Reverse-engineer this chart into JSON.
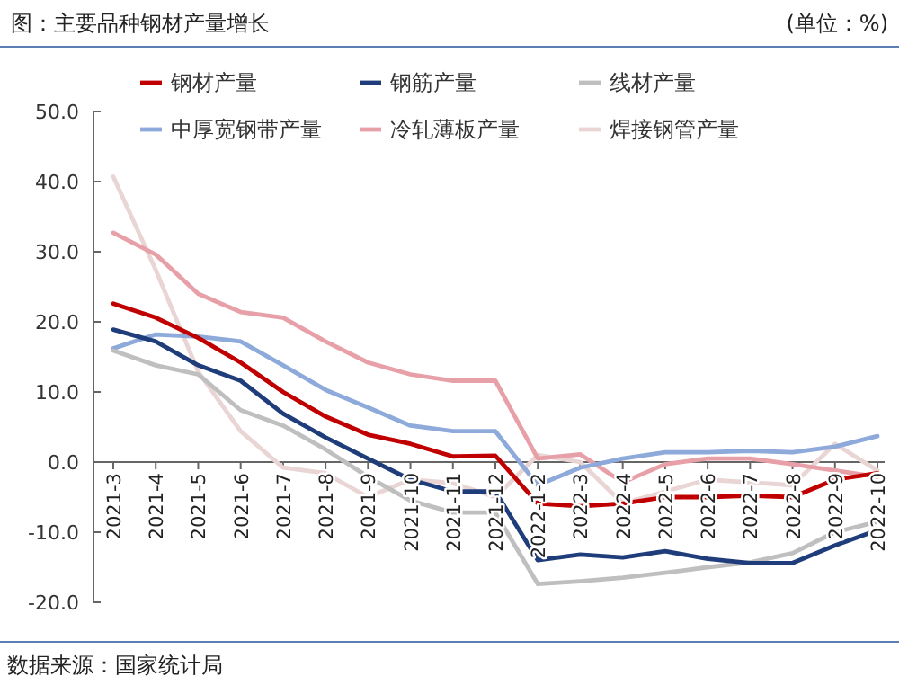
{
  "chart_data": {
    "type": "line",
    "title": "图：主要品种钢材产量增长",
    "ylabel": "(单位：%)",
    "annotations": [
      "数据来源：国家统计局"
    ],
    "categories": [
      "2021-3",
      "2021-4",
      "2021-5",
      "2021-6",
      "2021-7",
      "2021-8",
      "2021-9",
      "2021-10",
      "2021-11",
      "2021-12",
      "2022-1-2",
      "2022-3",
      "2022-4",
      "2022-5",
      "2022-6",
      "2022-7",
      "2022-8",
      "2022-9",
      "2022-10"
    ],
    "ylim": [
      -20,
      50
    ],
    "yticks": [
      {
        "value": -20,
        "label": "-20.0"
      },
      {
        "value": -10,
        "label": "-10.0"
      },
      {
        "value": 0,
        "label": "0.0"
      },
      {
        "value": 10,
        "label": "10.0"
      },
      {
        "value": 20,
        "label": "20.0"
      },
      {
        "value": 30,
        "label": "30.0"
      },
      {
        "value": 40,
        "label": "40.0"
      },
      {
        "value": 50,
        "label": "50.0"
      }
    ],
    "grid": false,
    "legend": "top",
    "marker": "none",
    "line_style": "solid",
    "series": [
      {
        "name": "钢材产量",
        "color": "#c00000",
        "values": [
          22.6,
          20.6,
          17.7,
          14.2,
          10,
          6.5,
          3.9,
          2.6,
          0.8,
          0.9,
          -5.9,
          -6.3,
          -5.9,
          -5,
          -5,
          -4.8,
          -5,
          -2.5,
          -1.6
        ]
      },
      {
        "name": "钢筋产量",
        "color": "#1f3d7a",
        "values": [
          18.9,
          17.2,
          13.8,
          11.6,
          6.9,
          3.5,
          0.5,
          -2.5,
          -4.2,
          -4.2,
          -14,
          -13.2,
          -13.6,
          -12.7,
          -13.8,
          -14.4,
          -14.4,
          -11.9,
          -9.7
        ]
      },
      {
        "name": "线材产量",
        "color": "#bfbfbf",
        "values": [
          15.9,
          13.8,
          12.5,
          7.4,
          5.2,
          1.8,
          -2.1,
          -5.5,
          -7.2,
          -7.2,
          -17.4,
          -17,
          -16.5,
          -15.8,
          -15,
          -14.3,
          -13,
          -10,
          -8.5
        ]
      },
      {
        "name": "中厚宽钢带产量",
        "color": "#8eaadb",
        "values": [
          16.2,
          18.2,
          17.9,
          17.2,
          13.8,
          10.3,
          7.8,
          5.2,
          4.4,
          4.4,
          -3.3,
          -0.8,
          0.5,
          1.4,
          1.4,
          1.6,
          1.4,
          2.2,
          3.7
        ]
      },
      {
        "name": "冷轧薄板产量",
        "color": "#e8a0a8",
        "values": [
          32.7,
          29.6,
          24,
          21.4,
          20.6,
          17.2,
          14.2,
          12.5,
          11.6,
          11.6,
          0.5,
          1.1,
          -2.9,
          -0.3,
          0.5,
          0.5,
          -0.3,
          -1.2,
          -2.1
        ]
      },
      {
        "name": "焊接钢管产量",
        "color": "#ead5d5",
        "values": [
          40.7,
          27.4,
          12.9,
          4.4,
          -0.8,
          -1.6,
          -5,
          -2.5,
          -3,
          -5,
          1,
          0,
          -5.9,
          -4.2,
          -2.5,
          -2.9,
          -3.3,
          2.6,
          -1.2
        ]
      }
    ]
  }
}
